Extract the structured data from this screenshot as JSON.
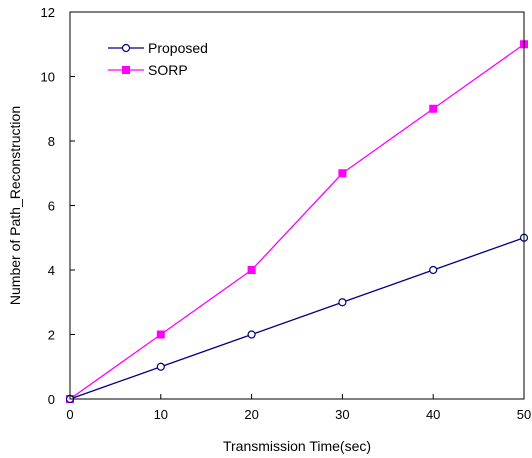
{
  "chart_data": {
    "type": "line",
    "title": "",
    "xlabel": "Transmission Time(sec)",
    "ylabel": "Number of Path_Reconstruction",
    "x": [
      0,
      10,
      20,
      30,
      40,
      50
    ],
    "xlim": [
      0,
      50
    ],
    "ylim": [
      0,
      12
    ],
    "xticks": [
      "0",
      "10",
      "20",
      "30",
      "40",
      "50"
    ],
    "yticks": [
      "0",
      "2",
      "4",
      "6",
      "8",
      "10",
      "12"
    ],
    "grid": false,
    "legend_position": "top-left",
    "series": [
      {
        "name": "Proposed",
        "values": [
          0,
          1,
          2,
          3,
          4,
          5
        ],
        "color": "#000080",
        "marker": "circle-open"
      },
      {
        "name": "SORP",
        "values": [
          0,
          2,
          4,
          7,
          9,
          11
        ],
        "color": "#ff00ff",
        "marker": "square-filled"
      }
    ]
  }
}
